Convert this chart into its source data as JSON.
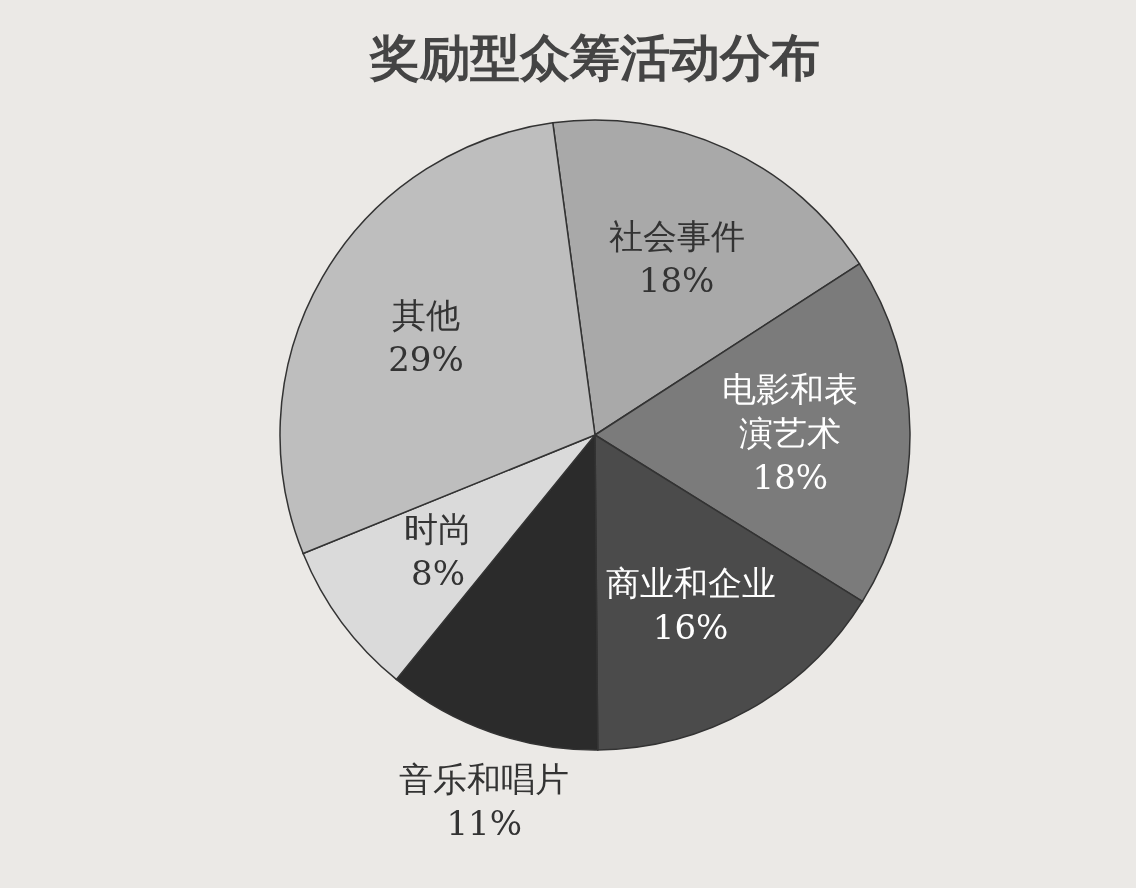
{
  "chart_data": {
    "type": "pie",
    "title": "奖励型众筹活动分布",
    "categories": [
      "社会事件",
      "电影和表演艺术",
      "商业和企业",
      "音乐和唱片",
      "时尚",
      "其他"
    ],
    "values": [
      18,
      18,
      16,
      11,
      8,
      29
    ],
    "value_labels": [
      "18%",
      "18%",
      "16%",
      "11%",
      "8%",
      "29%"
    ],
    "colors": [
      "#a9a9a9",
      "#7b7b7b",
      "#4b4b4b",
      "#2b2b2b",
      "#dadada",
      "#bebebe"
    ]
  }
}
